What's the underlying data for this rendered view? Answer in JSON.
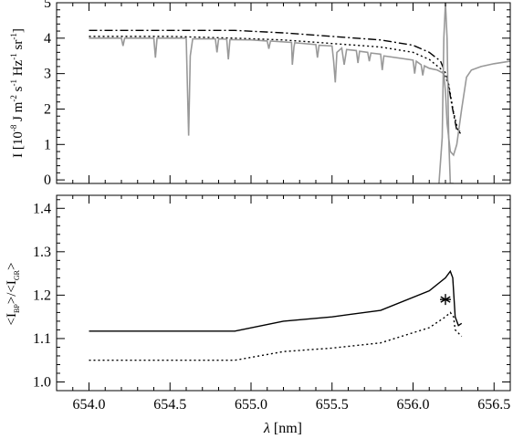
{
  "chart_data": [
    {
      "type": "line",
      "xlim": [
        653.8,
        656.6
      ],
      "ylim": [
        -0.1,
        5.0
      ],
      "xticks": [
        654.0,
        654.5,
        655.0,
        655.5,
        656.0,
        656.5
      ],
      "yticks": [
        0,
        1,
        2,
        3,
        4,
        5
      ],
      "ytick_labels": [
        "0",
        "1",
        "2",
        "3",
        "4",
        "5"
      ],
      "ylabel": {
        "base": "I [10",
        "exp1": "-8",
        "mid1": " J m",
        "exp2": "-2",
        "mid2": " s",
        "exp3": "-1",
        "mid3": " Hz",
        "exp4": "-1",
        "mid4": " sr",
        "exp5": "-1",
        "end": "]"
      },
      "series": [
        {
          "style": "dash-dot",
          "color": "#000000",
          "x": [
            654.0,
            654.5,
            654.9,
            655.2,
            655.5,
            655.8,
            656.0,
            656.1,
            656.17,
            656.21,
            656.24,
            656.27,
            656.3
          ],
          "y": [
            4.22,
            4.22,
            4.22,
            4.15,
            4.05,
            3.95,
            3.8,
            3.6,
            3.35,
            2.9,
            2.1,
            1.4,
            1.35
          ]
        },
        {
          "style": "dotted",
          "color": "#000000",
          "x": [
            654.0,
            654.5,
            654.9,
            655.2,
            655.5,
            655.8,
            656.0,
            656.1,
            656.18,
            656.22,
            656.25,
            656.28,
            656.3
          ],
          "y": [
            4.05,
            4.05,
            4.0,
            3.95,
            3.85,
            3.75,
            3.6,
            3.4,
            3.1,
            2.7,
            1.9,
            1.35,
            1.3
          ]
        },
        {
          "style": "solid",
          "color": "#999999",
          "x": [
            654.0,
            654.2,
            654.21,
            654.22,
            654.4,
            654.41,
            654.42,
            654.6,
            654.615,
            654.625,
            654.64,
            654.78,
            654.79,
            654.8,
            654.85,
            654.86,
            654.87,
            655.0,
            655.1,
            655.11,
            655.12,
            655.25,
            655.255,
            655.265,
            655.27,
            655.4,
            655.41,
            655.42,
            655.5,
            655.51,
            655.52,
            655.53,
            655.56,
            655.575,
            655.59,
            655.65,
            655.66,
            655.67,
            655.72,
            655.73,
            655.74,
            655.8,
            655.81,
            655.82,
            656.0,
            656.01,
            656.02,
            656.05,
            656.06,
            656.07,
            656.1,
            656.15,
            656.19,
            656.2,
            656.21,
            656.23,
            656.25,
            656.27,
            656.3,
            656.33,
            656.36,
            656.42,
            656.5,
            656.6
          ],
          "y": [
            4.0,
            4.0,
            3.78,
            4.0,
            4.0,
            3.45,
            4.0,
            4.0,
            1.25,
            3.5,
            3.98,
            3.98,
            3.6,
            3.98,
            3.97,
            3.4,
            3.96,
            3.95,
            3.92,
            3.7,
            3.92,
            3.88,
            3.25,
            3.75,
            3.87,
            3.82,
            3.45,
            3.8,
            3.78,
            3.35,
            2.75,
            3.6,
            3.72,
            3.25,
            3.68,
            3.65,
            3.3,
            3.63,
            3.6,
            3.35,
            3.58,
            3.55,
            3.1,
            3.5,
            3.38,
            3.0,
            3.35,
            3.25,
            2.95,
            3.22,
            3.15,
            3.1,
            3.0,
            2.5,
            1.6,
            0.8,
            0.7,
            1.0,
            2.0,
            2.9,
            3.1,
            3.2,
            3.28,
            3.35
          ]
        },
        {
          "style": "solid",
          "color": "#999999",
          "x": [
            656.16,
            656.18,
            656.19,
            656.2,
            656.21,
            656.22,
            656.23,
            656.25
          ],
          "y": [
            -0.1,
            1.2,
            4.0,
            5.0,
            4.0,
            1.2,
            -0.1,
            -0.1
          ]
        }
      ]
    },
    {
      "type": "line",
      "xlim": [
        653.8,
        656.6
      ],
      "ylim": [
        0.98,
        1.43
      ],
      "xticks": [
        654.0,
        654.5,
        655.0,
        655.5,
        656.0,
        656.5
      ],
      "xtick_labels": [
        "654.0",
        "654.5",
        "655.0",
        "655.5",
        "656.0",
        "656.5"
      ],
      "yticks": [
        1.0,
        1.1,
        1.2,
        1.3,
        1.4
      ],
      "ytick_labels": [
        "1.0",
        "1.1",
        "1.2",
        "1.3",
        "1.4"
      ],
      "xlabel": {
        "symbol": "λ",
        "rest": " [nm]"
      },
      "ylabel": {
        "p1": "<I",
        "s1": "BP",
        "p2": ">/<I",
        "s2": "GR",
        "p3": ">"
      },
      "series": [
        {
          "style": "solid",
          "color": "#000000",
          "x": [
            654.0,
            654.9,
            655.2,
            655.5,
            655.8,
            656.1,
            656.2,
            656.23,
            656.245,
            656.26,
            656.28,
            656.3
          ],
          "y": [
            1.117,
            1.117,
            1.14,
            1.15,
            1.165,
            1.21,
            1.24,
            1.255,
            1.24,
            1.15,
            1.13,
            1.135
          ]
        },
        {
          "style": "dotted",
          "color": "#000000",
          "x": [
            654.0,
            654.9,
            655.2,
            655.5,
            655.8,
            656.1,
            656.2,
            656.23,
            656.25,
            656.26,
            656.3
          ],
          "y": [
            1.05,
            1.05,
            1.07,
            1.078,
            1.09,
            1.125,
            1.15,
            1.16,
            1.15,
            1.12,
            1.105
          ]
        }
      ],
      "annotations": [
        {
          "marker": "asterisk",
          "x": 656.2,
          "y": 1.19
        }
      ]
    }
  ]
}
